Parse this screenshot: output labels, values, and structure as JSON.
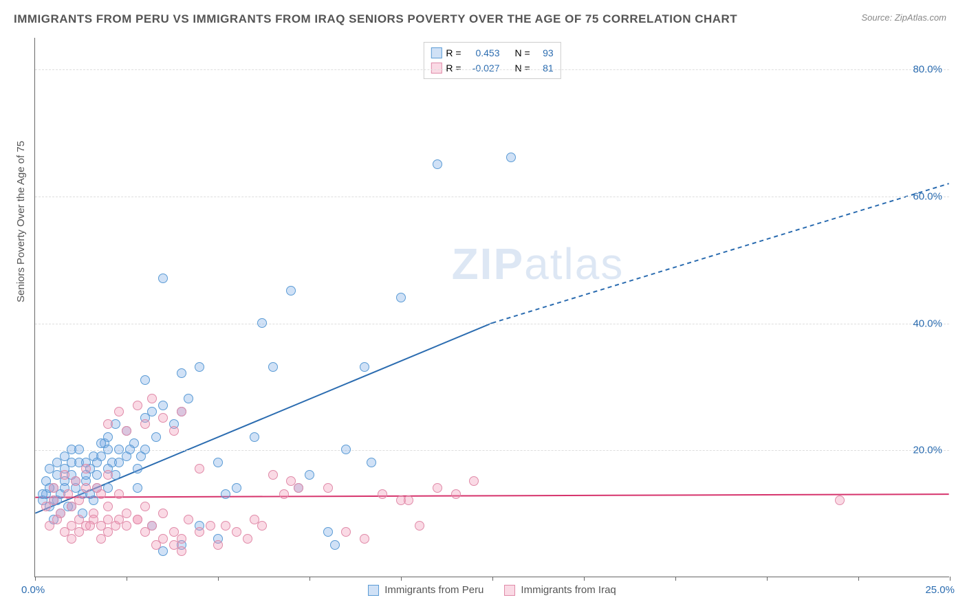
{
  "title": "IMMIGRANTS FROM PERU VS IMMIGRANTS FROM IRAQ SENIORS POVERTY OVER THE AGE OF 75 CORRELATION CHART",
  "source": "Source: ZipAtlas.com",
  "y_axis_title": "Seniors Poverty Over the Age of 75",
  "watermark_bold": "ZIP",
  "watermark_light": "atlas",
  "chart": {
    "type": "scatter",
    "background_color": "#ffffff",
    "grid_color": "#dddddd",
    "axis_color": "#666666",
    "xlim": [
      0,
      25
    ],
    "ylim": [
      0,
      85
    ],
    "x_tick_labels": [
      "0.0%",
      "25.0%"
    ],
    "x_tick_positions": [
      0,
      2.5,
      5,
      7.5,
      10,
      12.5,
      15,
      17.5,
      20,
      22.5,
      25
    ],
    "y_gridlines": [
      20,
      40,
      60,
      80
    ],
    "y_tick_labels": [
      "20.0%",
      "40.0%",
      "60.0%",
      "80.0%"
    ],
    "x_label_color": "#2b6cb0",
    "y_label_color": "#2b6cb0",
    "point_radius": 7,
    "point_stroke_width": 1.5,
    "trend_line_width": 2,
    "series": [
      {
        "name": "Immigrants from Peru",
        "fill_color": "rgba(120,170,230,0.35)",
        "stroke_color": "#5a9bd5",
        "trend_color": "#2b6cb0",
        "r_label": "R =",
        "r_value": "0.453",
        "n_label": "N =",
        "n_value": "93",
        "trend": {
          "x1": 0,
          "y1": 10,
          "x2_solid": 12.5,
          "y2_solid": 40,
          "x2_dash": 25,
          "y2_dash": 62
        },
        "points": [
          [
            0.2,
            12
          ],
          [
            0.3,
            13
          ],
          [
            0.4,
            11
          ],
          [
            0.5,
            14
          ],
          [
            0.6,
            12
          ],
          [
            0.7,
            13
          ],
          [
            0.8,
            15
          ],
          [
            0.9,
            11
          ],
          [
            1.0,
            16
          ],
          [
            1.1,
            14
          ],
          [
            0.4,
            17
          ],
          [
            0.6,
            18
          ],
          [
            0.8,
            19
          ],
          [
            1.0,
            20
          ],
          [
            1.2,
            18
          ],
          [
            1.3,
            13
          ],
          [
            1.4,
            15
          ],
          [
            1.5,
            17
          ],
          [
            1.6,
            12
          ],
          [
            1.7,
            14
          ],
          [
            1.8,
            19
          ],
          [
            1.9,
            21
          ],
          [
            2.0,
            22
          ],
          [
            2.1,
            18
          ],
          [
            2.2,
            16
          ],
          [
            2.3,
            20
          ],
          [
            2.5,
            23
          ],
          [
            2.7,
            21
          ],
          [
            2.8,
            14
          ],
          [
            3.0,
            25
          ],
          [
            3.2,
            26
          ],
          [
            3.3,
            22
          ],
          [
            3.5,
            27
          ],
          [
            3.8,
            24
          ],
          [
            4.0,
            26
          ],
          [
            4.2,
            28
          ],
          [
            4.5,
            33
          ],
          [
            4.0,
            32
          ],
          [
            3.5,
            47
          ],
          [
            3.0,
            31
          ],
          [
            5.0,
            18
          ],
          [
            5.2,
            13
          ],
          [
            5.5,
            14
          ],
          [
            5.0,
            6
          ],
          [
            4.5,
            8
          ],
          [
            4.0,
            5
          ],
          [
            3.5,
            4
          ],
          [
            6.0,
            22
          ],
          [
            6.2,
            40
          ],
          [
            6.5,
            33
          ],
          [
            7.0,
            45
          ],
          [
            7.2,
            14
          ],
          [
            7.5,
            16
          ],
          [
            8.0,
            7
          ],
          [
            8.2,
            5
          ],
          [
            8.5,
            20
          ],
          [
            9.0,
            33
          ],
          [
            9.2,
            18
          ],
          [
            10.0,
            44
          ],
          [
            11.0,
            65
          ],
          [
            13.0,
            66
          ],
          [
            0.5,
            9
          ],
          [
            0.7,
            10
          ],
          [
            1.0,
            11
          ],
          [
            1.3,
            10
          ],
          [
            1.5,
            13
          ],
          [
            1.7,
            16
          ],
          [
            2.0,
            14
          ],
          [
            2.2,
            24
          ],
          [
            2.5,
            19
          ],
          [
            2.8,
            17
          ],
          [
            3.0,
            20
          ],
          [
            0.3,
            15
          ],
          [
            0.4,
            14
          ],
          [
            0.6,
            16
          ],
          [
            0.8,
            17
          ],
          [
            1.0,
            18
          ],
          [
            1.2,
            20
          ],
          [
            1.4,
            18
          ],
          [
            1.6,
            19
          ],
          [
            1.8,
            21
          ],
          [
            2.0,
            20
          ],
          [
            0.2,
            13
          ],
          [
            0.5,
            12
          ],
          [
            0.8,
            14
          ],
          [
            1.1,
            15
          ],
          [
            1.4,
            16
          ],
          [
            1.7,
            18
          ],
          [
            2.0,
            17
          ],
          [
            2.3,
            18
          ],
          [
            2.6,
            20
          ],
          [
            2.9,
            19
          ],
          [
            3.2,
            8
          ]
        ]
      },
      {
        "name": "Immigrants from Iraq",
        "fill_color": "rgba(240,150,180,0.35)",
        "stroke_color": "#e08aa8",
        "trend_color": "#d6336c",
        "r_label": "R =",
        "r_value": "-0.027",
        "n_label": "N =",
        "n_value": "81",
        "trend": {
          "x1": 0,
          "y1": 12.5,
          "x2_solid": 25,
          "y2_solid": 13,
          "x2_dash": 25,
          "y2_dash": 13
        },
        "points": [
          [
            0.3,
            11
          ],
          [
            0.5,
            12
          ],
          [
            0.7,
            10
          ],
          [
            0.9,
            13
          ],
          [
            1.0,
            11
          ],
          [
            1.2,
            12
          ],
          [
            1.4,
            14
          ],
          [
            1.6,
            10
          ],
          [
            1.8,
            13
          ],
          [
            2.0,
            11
          ],
          [
            0.4,
            8
          ],
          [
            0.6,
            9
          ],
          [
            0.8,
            7
          ],
          [
            1.0,
            8
          ],
          [
            1.2,
            9
          ],
          [
            1.4,
            8
          ],
          [
            1.6,
            9
          ],
          [
            1.8,
            8
          ],
          [
            2.0,
            9
          ],
          [
            2.2,
            8
          ],
          [
            2.5,
            10
          ],
          [
            2.8,
            9
          ],
          [
            3.0,
            11
          ],
          [
            3.2,
            8
          ],
          [
            3.5,
            10
          ],
          [
            3.8,
            7
          ],
          [
            4.0,
            6
          ],
          [
            4.2,
            9
          ],
          [
            4.5,
            7
          ],
          [
            4.8,
            8
          ],
          [
            2.0,
            24
          ],
          [
            2.3,
            26
          ],
          [
            2.5,
            23
          ],
          [
            2.8,
            27
          ],
          [
            3.0,
            24
          ],
          [
            3.2,
            28
          ],
          [
            3.5,
            25
          ],
          [
            3.8,
            23
          ],
          [
            4.0,
            26
          ],
          [
            4.5,
            17
          ],
          [
            5.0,
            5
          ],
          [
            5.2,
            8
          ],
          [
            5.5,
            7
          ],
          [
            5.8,
            6
          ],
          [
            6.0,
            9
          ],
          [
            6.2,
            8
          ],
          [
            6.5,
            16
          ],
          [
            6.8,
            13
          ],
          [
            7.0,
            15
          ],
          [
            7.2,
            14
          ],
          [
            8.0,
            14
          ],
          [
            8.5,
            7
          ],
          [
            9.0,
            6
          ],
          [
            9.5,
            13
          ],
          [
            10.0,
            12
          ],
          [
            10.2,
            12
          ],
          [
            10.5,
            8
          ],
          [
            11.0,
            14
          ],
          [
            11.5,
            13
          ],
          [
            12.0,
            15
          ],
          [
            22.0,
            12
          ],
          [
            1.0,
            6
          ],
          [
            1.2,
            7
          ],
          [
            1.5,
            8
          ],
          [
            1.8,
            6
          ],
          [
            2.0,
            7
          ],
          [
            2.3,
            9
          ],
          [
            2.5,
            8
          ],
          [
            2.8,
            9
          ],
          [
            3.0,
            7
          ],
          [
            3.3,
            5
          ],
          [
            3.5,
            6
          ],
          [
            3.8,
            5
          ],
          [
            4.0,
            4
          ],
          [
            0.5,
            14
          ],
          [
            0.8,
            16
          ],
          [
            1.1,
            15
          ],
          [
            1.4,
            17
          ],
          [
            1.7,
            14
          ],
          [
            2.0,
            16
          ],
          [
            2.3,
            13
          ]
        ]
      }
    ]
  }
}
